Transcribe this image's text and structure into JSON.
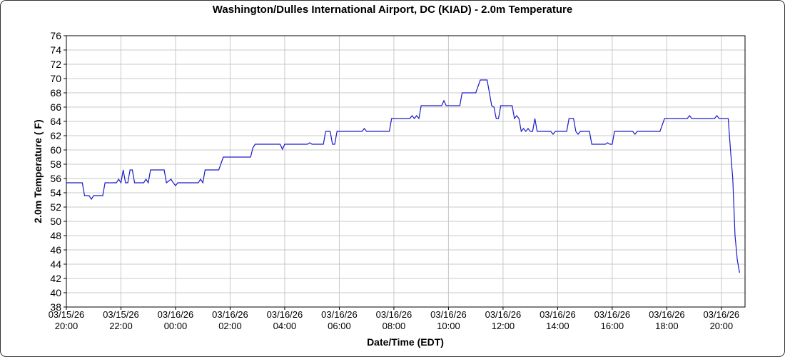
{
  "chart_data": {
    "type": "line",
    "title": "Washington/Dulles International Airport, DC (KIAD) - 2.0m Temperature",
    "xlabel": "Date/Time (EDT)",
    "ylabel": "2.0m Temperature ( F)",
    "grid": true,
    "xlim": [
      "03/15/26 20:00",
      "03/16/26 20:52"
    ],
    "xticks": [
      "03/15/26 20:00",
      "03/15/26 22:00",
      "03/16/26 00:00",
      "03/16/26 02:00",
      "03/16/26 04:00",
      "03/16/26 06:00",
      "03/16/26 08:00",
      "03/16/26 10:00",
      "03/16/26 12:00",
      "03/16/26 14:00",
      "03/16/26 16:00",
      "03/16/26 18:00",
      "03/16/26 20:00"
    ],
    "ylim": [
      38,
      76
    ],
    "yticks": [
      38,
      40,
      42,
      44,
      46,
      48,
      50,
      52,
      54,
      56,
      58,
      60,
      62,
      64,
      66,
      68,
      70,
      72,
      74,
      76
    ],
    "x": [
      "03/15/26 20:00",
      "03/15/26 20:35",
      "03/15/26 20:40",
      "03/15/26 20:50",
      "03/15/26 20:55",
      "03/15/26 21:00",
      "03/15/26 21:20",
      "03/15/26 21:25",
      "03/15/26 21:50",
      "03/15/26 21:55",
      "03/15/26 22:00",
      "03/15/26 22:05",
      "03/15/26 22:10",
      "03/15/26 22:15",
      "03/15/26 22:20",
      "03/15/26 22:25",
      "03/15/26 22:30",
      "03/15/26 22:50",
      "03/15/26 22:55",
      "03/15/26 23:00",
      "03/15/26 23:05",
      "03/15/26 23:35",
      "03/15/26 23:40",
      "03/15/26 23:50",
      "03/15/26 23:55",
      "03/16/26 00:00",
      "03/16/26 00:05",
      "03/16/26 00:50",
      "03/16/26 00:55",
      "03/16/26 01:00",
      "03/16/26 01:05",
      "03/16/26 01:35",
      "03/16/26 01:45",
      "03/16/26 02:45",
      "03/16/26 02:50",
      "03/16/26 02:55",
      "03/16/26 03:50",
      "03/16/26 03:55",
      "03/16/26 04:00",
      "03/16/26 04:50",
      "03/16/26 04:55",
      "03/16/26 05:00",
      "03/16/26 05:25",
      "03/16/26 05:30",
      "03/16/26 05:40",
      "03/16/26 05:45",
      "03/16/26 05:50",
      "03/16/26 05:55",
      "03/16/26 06:50",
      "03/16/26 06:55",
      "03/16/26 07:00",
      "03/16/26 07:50",
      "03/16/26 07:55",
      "03/16/26 08:35",
      "03/16/26 08:40",
      "03/16/26 08:45",
      "03/16/26 08:50",
      "03/16/26 08:55",
      "03/16/26 09:00",
      "03/16/26 09:45",
      "03/16/26 09:50",
      "03/16/26 09:55",
      "03/16/26 10:25",
      "03/16/26 10:30",
      "03/16/26 11:00",
      "03/16/26 11:10",
      "03/16/26 11:25",
      "03/16/26 11:35",
      "03/16/26 11:40",
      "03/16/26 11:45",
      "03/16/26 11:50",
      "03/16/26 11:55",
      "03/16/26 12:20",
      "03/16/26 12:25",
      "03/16/26 12:30",
      "03/16/26 12:35",
      "03/16/26 12:40",
      "03/16/26 12:45",
      "03/16/26 12:50",
      "03/16/26 12:55",
      "03/16/26 13:00",
      "03/16/26 13:05",
      "03/16/26 13:10",
      "03/16/26 13:15",
      "03/16/26 13:45",
      "03/16/26 13:50",
      "03/16/26 13:55",
      "03/16/26 14:20",
      "03/16/26 14:25",
      "03/16/26 14:35",
      "03/16/26 14:40",
      "03/16/26 14:45",
      "03/16/26 14:50",
      "03/16/26 15:10",
      "03/16/26 15:15",
      "03/16/26 15:45",
      "03/16/26 15:50",
      "03/16/26 15:55",
      "03/16/26 16:00",
      "03/16/26 16:05",
      "03/16/26 16:45",
      "03/16/26 16:50",
      "03/16/26 16:55",
      "03/16/26 17:45",
      "03/16/26 17:55",
      "03/16/26 18:45",
      "03/16/26 18:50",
      "03/16/26 18:55",
      "03/16/26 19:45",
      "03/16/26 19:50",
      "03/16/26 19:55",
      "03/16/26 20:15",
      "03/16/26 20:20",
      "03/16/26 20:25",
      "03/16/26 20:30",
      "03/16/26 20:35",
      "03/16/26 20:40"
    ],
    "series": [
      {
        "color": "#1a1acc",
        "values": [
          55.4,
          55.4,
          53.6,
          53.6,
          53.1,
          53.6,
          53.6,
          55.4,
          55.4,
          55.9,
          55.4,
          57.2,
          55.4,
          55.4,
          57.2,
          57.2,
          55.4,
          55.4,
          55.9,
          55.4,
          57.2,
          57.2,
          55.4,
          55.9,
          55.4,
          55.0,
          55.4,
          55.4,
          55.9,
          55.4,
          57.2,
          57.2,
          59.0,
          59.0,
          60.3,
          60.8,
          60.8,
          60.1,
          60.8,
          60.8,
          61.0,
          60.8,
          60.8,
          62.6,
          62.6,
          60.8,
          60.8,
          62.6,
          62.6,
          63.0,
          62.6,
          62.6,
          64.4,
          64.4,
          64.8,
          64.4,
          64.8,
          64.4,
          66.2,
          66.2,
          66.9,
          66.2,
          66.2,
          68.0,
          68.0,
          69.8,
          69.8,
          66.2,
          66.0,
          64.4,
          64.4,
          66.2,
          66.2,
          64.4,
          64.8,
          64.4,
          62.6,
          63.0,
          62.6,
          63.0,
          62.6,
          62.6,
          64.4,
          62.6,
          62.6,
          62.2,
          62.6,
          62.6,
          64.4,
          64.4,
          62.6,
          62.2,
          62.6,
          62.6,
          60.8,
          60.8,
          61.0,
          60.8,
          60.8,
          62.6,
          62.6,
          62.2,
          62.6,
          62.6,
          64.4,
          64.4,
          64.8,
          64.4,
          64.4,
          64.8,
          64.4,
          64.4,
          60.0,
          56.0,
          48.0,
          44.6,
          42.8
        ]
      }
    ]
  }
}
